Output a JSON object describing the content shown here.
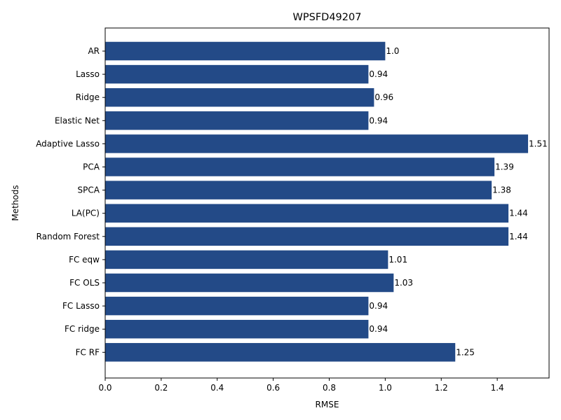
{
  "chart_data": {
    "type": "bar",
    "orientation": "horizontal",
    "title": "WPSFD49207",
    "xlabel": "RMSE",
    "ylabel": "Methods",
    "categories": [
      "AR",
      "Lasso",
      "Ridge",
      "Elastic Net",
      "Adaptive Lasso",
      "PCA",
      "SPCA",
      "LA(PC)",
      "Random Forest",
      "FC eqw",
      "FC OLS",
      "FC Lasso",
      "FC ridge",
      "FC RF"
    ],
    "values": [
      1.0,
      0.94,
      0.96,
      0.94,
      1.51,
      1.39,
      1.38,
      1.44,
      1.44,
      1.01,
      1.03,
      0.94,
      0.94,
      1.25
    ],
    "data_labels": [
      "1.0",
      "0.94",
      "0.96",
      "0.94",
      "1.51",
      "1.39",
      "1.38",
      "1.44",
      "1.44",
      "1.01",
      "1.03",
      "0.94",
      "0.94",
      "1.25"
    ],
    "xlim": [
      0,
      1.585
    ],
    "xticks": [
      "0.0",
      "0.2",
      "0.4",
      "0.6",
      "0.8",
      "1.0",
      "1.2",
      "1.4"
    ],
    "bar_color": "#234a87",
    "grid": false,
    "legend": false
  }
}
